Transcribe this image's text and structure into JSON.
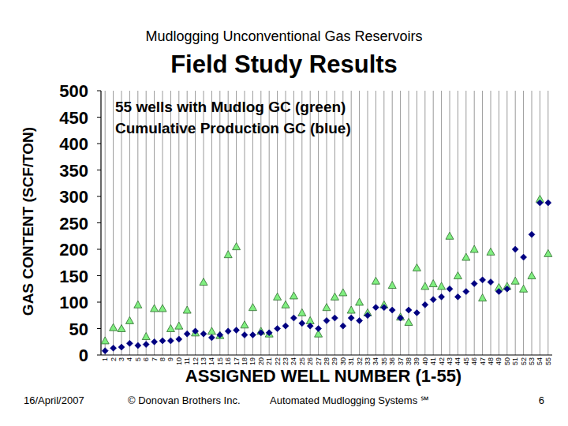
{
  "chart_data": {
    "type": "scatter",
    "subtitle": "Mudlogging Unconventional Gas Reservoirs",
    "title": "Field Study Results",
    "x_label": "ASSIGNED WELL NUMBER (1-55)",
    "y_label": "GAS CONTENT (SCF/TON)",
    "x": [
      1,
      2,
      3,
      4,
      5,
      6,
      7,
      8,
      9,
      10,
      11,
      12,
      13,
      14,
      15,
      16,
      17,
      18,
      19,
      20,
      21,
      22,
      23,
      24,
      25,
      26,
      27,
      28,
      29,
      30,
      31,
      32,
      33,
      34,
      35,
      36,
      37,
      38,
      39,
      40,
      41,
      42,
      43,
      44,
      45,
      46,
      47,
      48,
      49,
      50,
      51,
      52,
      53,
      54,
      55
    ],
    "xlim": [
      0.5,
      55.5
    ],
    "xticks": [
      1,
      2,
      3,
      4,
      5,
      6,
      7,
      8,
      9,
      10,
      11,
      12,
      13,
      14,
      15,
      16,
      17,
      18,
      19,
      20,
      21,
      22,
      23,
      24,
      25,
      26,
      27,
      28,
      29,
      30,
      31,
      32,
      33,
      34,
      35,
      36,
      37,
      38,
      39,
      40,
      41,
      42,
      43,
      44,
      45,
      46,
      47,
      48,
      49,
      50,
      51,
      52,
      53,
      54,
      55
    ],
    "ylim": [
      0,
      500
    ],
    "yticks": [
      0,
      50,
      100,
      150,
      200,
      250,
      300,
      350,
      400,
      450,
      500
    ],
    "grid": true,
    "legend": "upper left",
    "series": [
      {
        "name": "55 wells with Mudlog GC (green)",
        "color": "#80ee80",
        "marker": "triangle",
        "values": [
          27,
          52,
          50,
          65,
          95,
          35,
          88,
          88,
          50,
          55,
          85,
          42,
          138,
          45,
          37,
          190,
          205,
          57,
          90,
          45,
          40,
          110,
          95,
          112,
          80,
          65,
          40,
          90,
          110,
          118,
          85,
          100,
          80,
          140,
          95,
          132,
          72,
          62,
          165,
          130,
          135,
          130,
          225,
          150,
          185,
          200,
          108,
          195,
          128,
          130,
          140,
          125,
          150,
          295,
          192
        ]
      },
      {
        "name": "Cumulative Production GC (blue)",
        "color": "#000080",
        "marker": "diamond",
        "values": [
          8,
          13,
          15,
          22,
          18,
          20,
          25,
          27,
          27,
          30,
          40,
          45,
          40,
          33,
          38,
          45,
          47,
          38,
          38,
          42,
          42,
          50,
          55,
          70,
          60,
          55,
          50,
          65,
          70,
          55,
          70,
          65,
          75,
          90,
          90,
          85,
          70,
          85,
          80,
          95,
          105,
          110,
          125,
          110,
          120,
          135,
          142,
          138,
          120,
          125,
          200,
          185,
          228,
          288,
          288
        ]
      }
    ]
  },
  "footer": {
    "date": "16/April/2007",
    "copyright": "© Donovan Brothers Inc.",
    "product": "Automated Mudlogging Systems ℠",
    "page": 6
  }
}
